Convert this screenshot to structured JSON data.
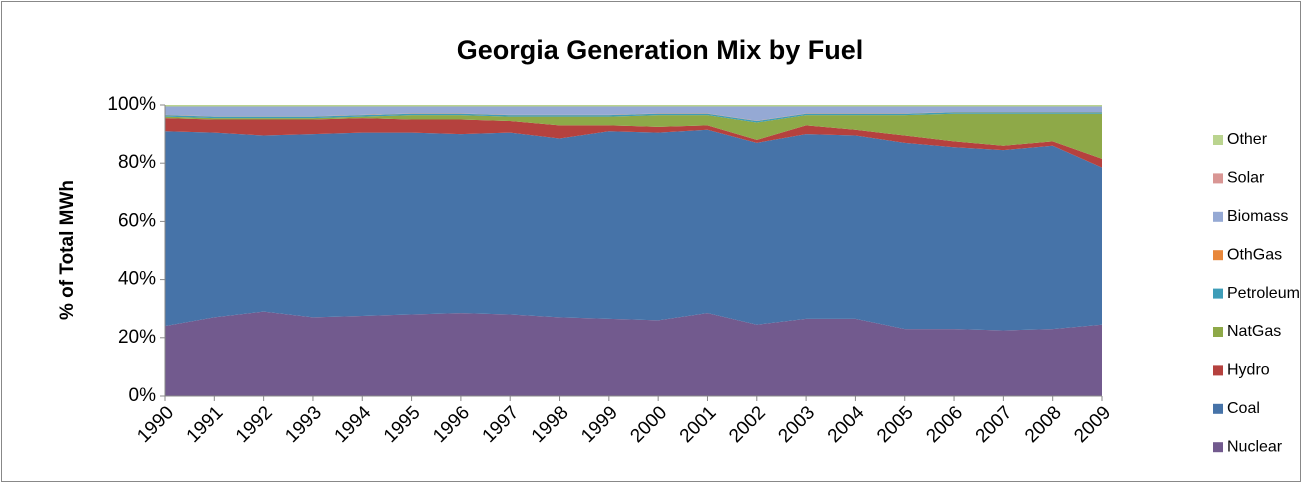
{
  "chart_data": {
    "type": "stacked_area",
    "title": "Georgia Generation Mix by Fuel",
    "y_label": "% of Total MWh",
    "categories": [
      "1990",
      "1991",
      "1992",
      "1993",
      "1994",
      "1995",
      "1996",
      "1997",
      "1998",
      "1999",
      "2000",
      "2001",
      "2002",
      "2003",
      "2004",
      "2005",
      "2006",
      "2007",
      "2008",
      "2009"
    ],
    "ylim": [
      0,
      100
    ],
    "yticks": [
      {
        "value": 0,
        "label": "0%"
      },
      {
        "value": 20,
        "label": "20%"
      },
      {
        "value": 40,
        "label": "40%"
      },
      {
        "value": 60,
        "label": "60%"
      },
      {
        "value": 80,
        "label": "80%"
      },
      {
        "value": 100,
        "label": "100%"
      }
    ],
    "grid": false,
    "legend": "right",
    "series": [
      {
        "name": "Nuclear",
        "color": "#725a8e",
        "values": [
          24,
          27,
          29,
          27,
          27.5,
          28,
          28.5,
          28,
          27,
          26.5,
          26,
          28.5,
          24.5,
          26.5,
          26.5,
          23,
          23,
          22.5,
          23,
          24.5
        ]
      },
      {
        "name": "Coal",
        "color": "#4673a8",
        "values": [
          67,
          63.5,
          60.5,
          63,
          63,
          62.5,
          61.5,
          62.5,
          61.5,
          64.5,
          64.5,
          63,
          62.5,
          63.5,
          63,
          64,
          62.5,
          62,
          63,
          54
        ]
      },
      {
        "name": "Hydro",
        "color": "#b5413e",
        "values": [
          4.5,
          4.5,
          5.5,
          5,
          5,
          4.5,
          5,
          4,
          4.5,
          2,
          2,
          1.5,
          1,
          3,
          2,
          2.5,
          2,
          1.5,
          1.5,
          3
        ]
      },
      {
        "name": "NatGas",
        "color": "#8ea948",
        "values": [
          0.5,
          0.5,
          0.5,
          0.5,
          0.5,
          1.5,
          1.5,
          1.5,
          3,
          3,
          4,
          3.5,
          6,
          3.5,
          5,
          7,
          9.5,
          11,
          9.5,
          15.5
        ]
      },
      {
        "name": "Petroleum",
        "color": "#3e9db8",
        "values": [
          0.5,
          0.5,
          0.5,
          0.5,
          0.5,
          0.5,
          0.5,
          0.5,
          0.5,
          0.5,
          0.5,
          0.5,
          0.5,
          0.5,
          0.5,
          0.5,
          0.5,
          0.5,
          0.5,
          0.5
        ]
      },
      {
        "name": "OthGas",
        "color": "#e8873a",
        "values": [
          0.1,
          0.1,
          0.1,
          0.1,
          0.1,
          0.1,
          0.1,
          0.1,
          0.1,
          0.1,
          0.1,
          0.1,
          0.1,
          0.1,
          0.1,
          0.1,
          0.1,
          0.1,
          0.1,
          0.1
        ]
      },
      {
        "name": "Biomass",
        "color": "#95a9d4",
        "values": [
          2.9,
          3.4,
          3.4,
          3.4,
          2.9,
          2.4,
          2.4,
          2.9,
          2.9,
          2.9,
          2.4,
          2.4,
          4.9,
          2.4,
          2.4,
          2.4,
          1.9,
          1.9,
          1.9,
          1.9
        ]
      },
      {
        "name": "Solar",
        "color": "#d99694",
        "values": [
          0,
          0,
          0,
          0,
          0,
          0,
          0,
          0,
          0,
          0,
          0,
          0,
          0,
          0,
          0,
          0,
          0,
          0,
          0,
          0
        ]
      },
      {
        "name": "Other",
        "color": "#bad48f",
        "values": [
          0.5,
          0.5,
          0.5,
          0.5,
          0.5,
          0.5,
          0.5,
          0.5,
          0.5,
          0.5,
          0.5,
          0.5,
          0.5,
          0.5,
          0.5,
          0.5,
          0.5,
          0.5,
          0.5,
          0.5
        ]
      }
    ]
  }
}
